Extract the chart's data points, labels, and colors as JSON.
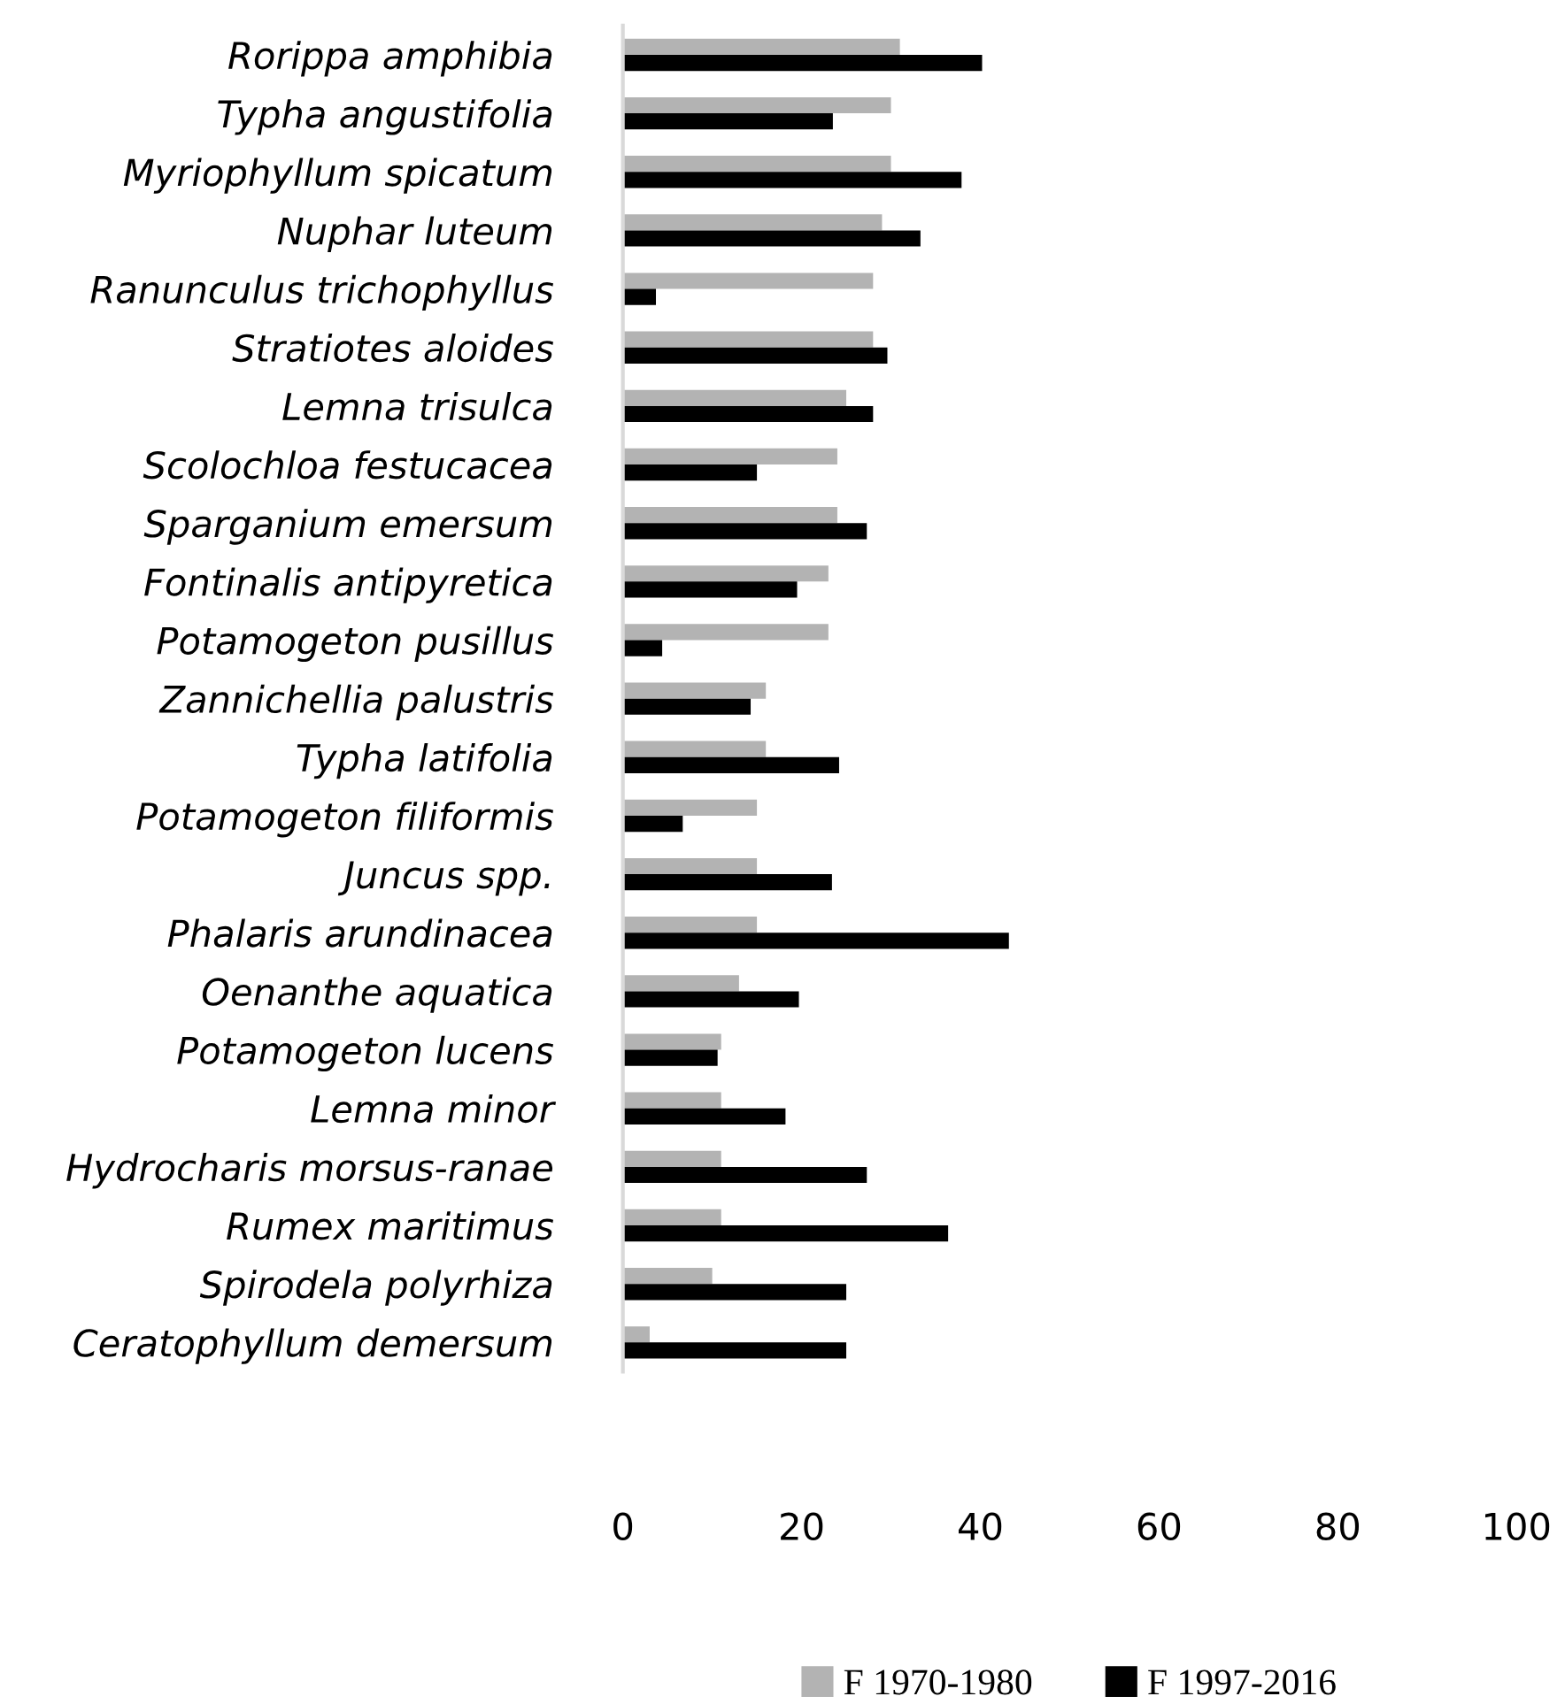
{
  "chart_data": {
    "type": "bar",
    "orientation": "horizontal",
    "categories": [
      "Rorippa amphibia",
      "Typha angustifolia",
      "Myriophyllum spicatum",
      "Nuphar luteum",
      "Ranunculus trichophyllus",
      "Stratiotes aloides",
      "Lemna trisulca",
      "Scolochloa festucacea",
      "Sparganium emersum",
      "Fontinalis antipyretica",
      "Potamogeton pusillus",
      "Zannichellia palustris",
      "Typha latifolia",
      "Potamogeton filiformis",
      "Juncus spp.",
      "Phalaris arundinacea",
      "Oenanthe aquatica",
      "Potamogeton lucens",
      "Lemna minor",
      "Hydrocharis morsus-ranae",
      "Rumex maritimus",
      "Spirodela polyrhiza",
      "Ceratophyllum demersum"
    ],
    "series": [
      {
        "name": "F 1970-1980",
        "color": "#b3b3b3",
        "values": [
          31.0,
          30.0,
          30.0,
          29.0,
          28.0,
          28.0,
          25.0,
          24.0,
          24.0,
          23.0,
          23.0,
          16.0,
          16.0,
          15.0,
          15.0,
          15.0,
          13.0,
          11.0,
          11.0,
          11.0,
          11.0,
          10.0,
          3.0
        ]
      },
      {
        "name": "F 1997-2016",
        "color": "#000000",
        "values": [
          40.2,
          23.5,
          37.9,
          33.3,
          3.7,
          29.6,
          28.0,
          15.0,
          27.3,
          19.5,
          4.4,
          14.3,
          24.2,
          6.7,
          23.4,
          43.2,
          19.7,
          10.6,
          18.2,
          27.3,
          36.4,
          25.0,
          25.0
        ]
      }
    ],
    "xlim": [
      0,
      100
    ],
    "xticks": [
      0,
      20,
      40,
      60,
      80,
      100
    ],
    "grid": false,
    "legend": "bottom"
  }
}
